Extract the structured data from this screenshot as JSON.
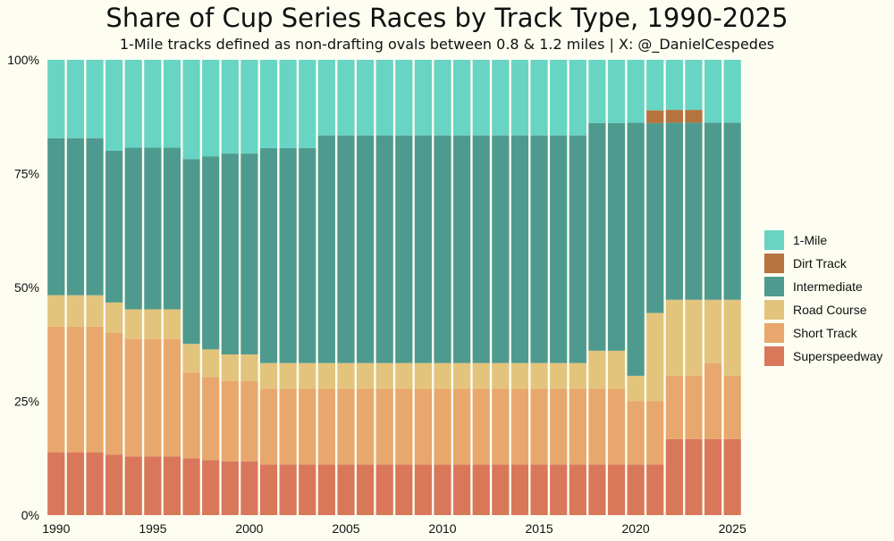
{
  "chart_data": {
    "type": "bar",
    "stacked": true,
    "normalized": true,
    "title": "Share of Cup Series Races by Track Type, 1990-2025",
    "subtitle": "1-Mile tracks defined as non-drafting ovals between 0.8 & 1.2 miles | X: @_DanielCespedes",
    "xlabel": "",
    "ylabel": "",
    "ylim": [
      0,
      100
    ],
    "y_ticks": [
      "0%",
      "25%",
      "50%",
      "75%",
      "100%"
    ],
    "x_ticks": [
      "1990",
      "1995",
      "2000",
      "2005",
      "2010",
      "2015",
      "2020",
      "2025"
    ],
    "categories": [
      1990,
      1991,
      1992,
      1993,
      1994,
      1995,
      1996,
      1997,
      1998,
      1999,
      2000,
      2001,
      2002,
      2003,
      2004,
      2005,
      2006,
      2007,
      2008,
      2009,
      2010,
      2011,
      2012,
      2013,
      2014,
      2015,
      2016,
      2017,
      2018,
      2019,
      2020,
      2021,
      2022,
      2023,
      2024,
      2025
    ],
    "legend_position": "right",
    "grid": false,
    "series": [
      {
        "name": "Superspeedway",
        "color": "#d9775a",
        "values": [
          13.8,
          13.8,
          13.8,
          13.3,
          12.9,
          12.9,
          12.9,
          12.5,
          12.1,
          11.8,
          11.8,
          11.1,
          11.1,
          11.1,
          11.1,
          11.1,
          11.1,
          11.1,
          11.1,
          11.1,
          11.1,
          11.1,
          11.1,
          11.1,
          11.1,
          11.1,
          11.1,
          11.1,
          11.1,
          11.1,
          11.1,
          11.1,
          16.7,
          16.7,
          16.7,
          16.7
        ]
      },
      {
        "name": "Short Track",
        "color": "#e8a76d",
        "values": [
          27.6,
          27.6,
          27.6,
          26.7,
          25.8,
          25.8,
          25.8,
          18.8,
          18.2,
          17.6,
          17.6,
          16.7,
          16.7,
          16.7,
          16.7,
          16.7,
          16.7,
          16.7,
          16.7,
          16.7,
          16.7,
          16.7,
          16.7,
          16.7,
          16.7,
          16.7,
          16.7,
          16.7,
          16.7,
          16.7,
          13.9,
          13.9,
          13.9,
          13.9,
          16.7,
          13.9
        ]
      },
      {
        "name": "Road Course",
        "color": "#e3c47c",
        "values": [
          6.9,
          6.9,
          6.9,
          6.7,
          6.5,
          6.5,
          6.5,
          6.3,
          6.1,
          5.9,
          5.9,
          5.6,
          5.6,
          5.6,
          5.6,
          5.6,
          5.6,
          5.6,
          5.6,
          5.6,
          5.6,
          5.6,
          5.6,
          5.6,
          5.6,
          5.6,
          5.6,
          5.6,
          8.3,
          8.3,
          5.6,
          19.4,
          16.7,
          16.7,
          13.9,
          16.7
        ]
      },
      {
        "name": "Intermediate",
        "color": "#4f9a8e",
        "values": [
          34.5,
          34.5,
          34.5,
          33.3,
          35.5,
          35.5,
          35.5,
          40.6,
          42.4,
          44.1,
          44.1,
          47.2,
          47.2,
          47.2,
          50.0,
          50.0,
          50.0,
          50.0,
          50.0,
          50.0,
          50.0,
          50.0,
          50.0,
          50.0,
          50.0,
          50.0,
          50.0,
          50.0,
          50.0,
          50.0,
          55.6,
          41.7,
          38.9,
          38.9,
          38.9,
          38.9
        ]
      },
      {
        "name": "Dirt Track",
        "color": "#b5733e",
        "values": [
          0,
          0,
          0,
          0,
          0,
          0,
          0,
          0,
          0,
          0,
          0,
          0,
          0,
          0,
          0,
          0,
          0,
          0,
          0,
          0,
          0,
          0,
          0,
          0,
          0,
          0,
          0,
          0,
          0,
          0,
          0,
          2.8,
          2.8,
          2.8,
          0,
          0
        ]
      },
      {
        "name": "1-Mile",
        "color": "#68d4c4",
        "values": [
          17.2,
          17.2,
          17.2,
          20.0,
          19.4,
          19.4,
          19.4,
          21.9,
          21.2,
          20.6,
          20.6,
          19.4,
          19.4,
          19.4,
          16.7,
          16.7,
          16.7,
          16.7,
          16.7,
          16.7,
          16.7,
          16.7,
          16.7,
          16.7,
          16.7,
          16.7,
          16.7,
          16.7,
          13.9,
          13.9,
          13.9,
          11.1,
          11.1,
          11.1,
          13.9,
          13.9
        ]
      }
    ],
    "legend_order": [
      "1-Mile",
      "Dirt Track",
      "Intermediate",
      "Road Course",
      "Short Track",
      "Superspeedway"
    ]
  }
}
